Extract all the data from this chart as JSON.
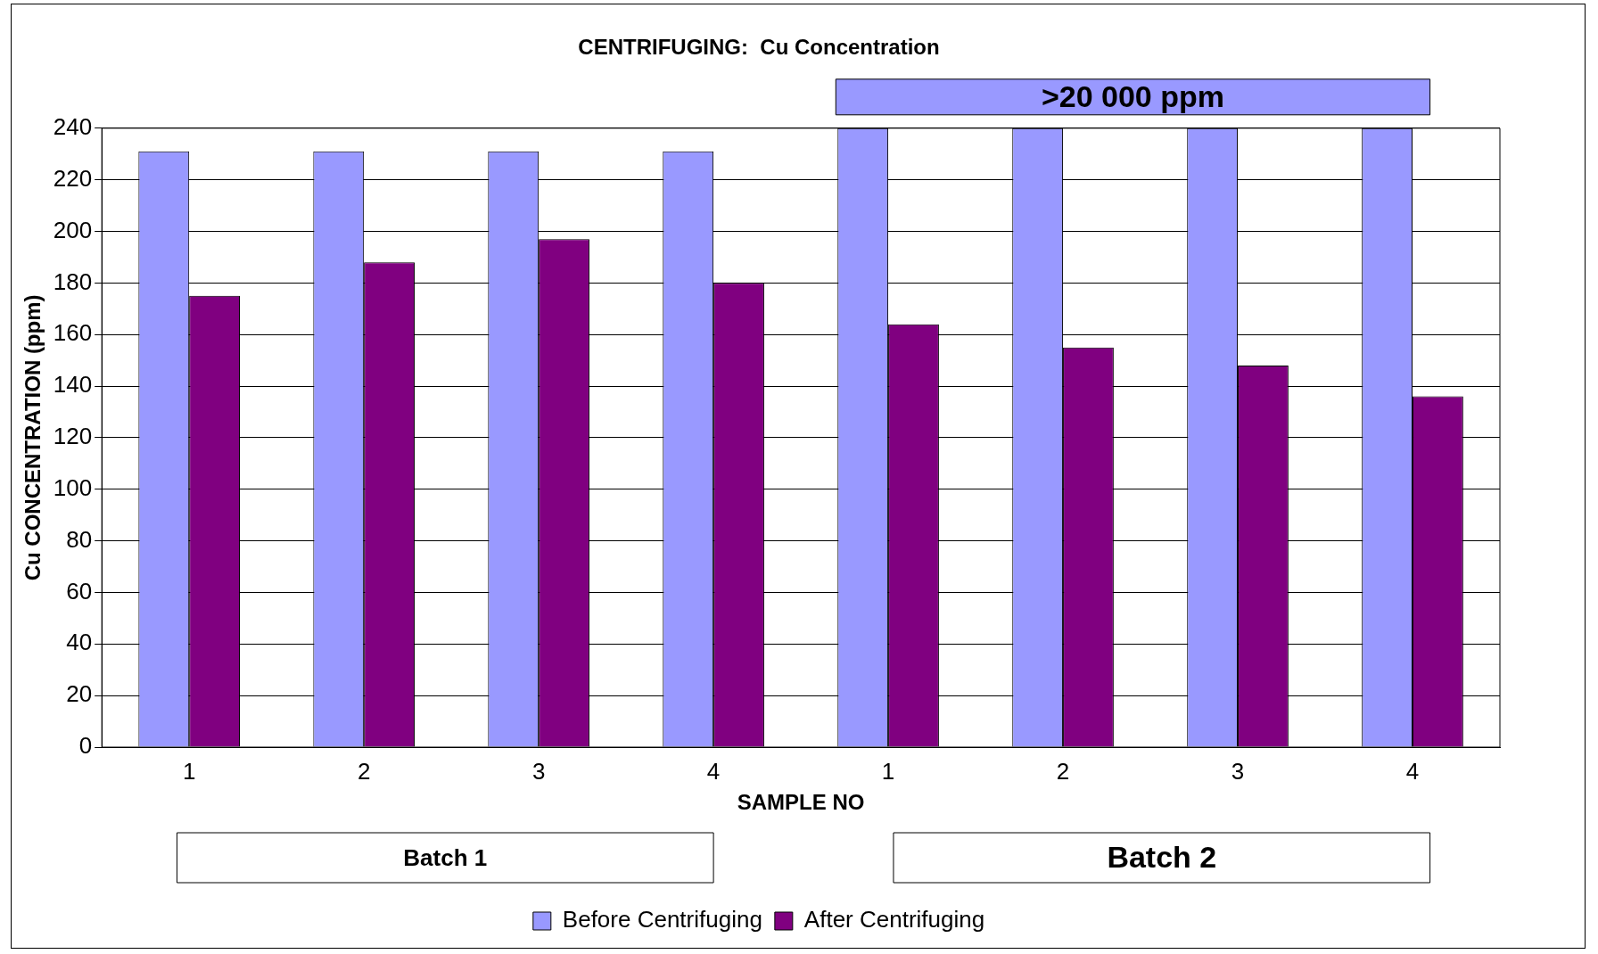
{
  "chart_data": {
    "type": "bar",
    "title": "CENTRIFUGING:  Cu Concentration",
    "xlabel": "SAMPLE NO",
    "ylabel": "Cu CONCENTRATION (ppm)",
    "categories": [
      "1",
      "2",
      "3",
      "4",
      "1",
      "2",
      "3",
      "4"
    ],
    "series": [
      {
        "name": "Before Centrifuging",
        "color": "#9999ff",
        "values": [
          231,
          231,
          231,
          231,
          240,
          240,
          240,
          240
        ]
      },
      {
        "name": "After Centrifuging",
        "color": "#800080",
        "values": [
          175,
          188,
          197,
          180,
          164,
          155,
          148,
          136
        ]
      }
    ],
    "ylim": [
      0,
      240
    ],
    "yticks": [
      0,
      20,
      40,
      60,
      80,
      100,
      120,
      140,
      160,
      180,
      200,
      220,
      240
    ],
    "grid": "y",
    "legend": "bottom",
    "annotations": [
      ">20 000 ppm",
      "Batch 1",
      "Batch 2"
    ]
  }
}
